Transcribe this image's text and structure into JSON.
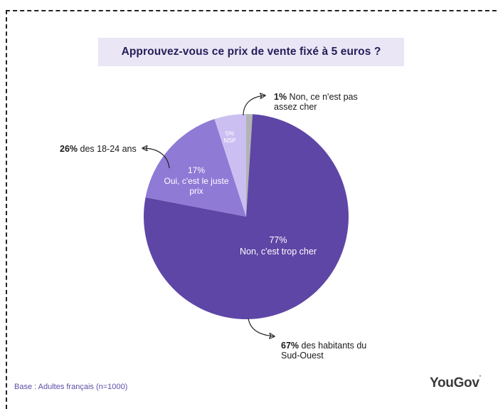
{
  "chart_data": {
    "type": "pie",
    "title": "Approuvez-vous ce prix de vente fixé à 5 euros ?",
    "slices": [
      {
        "label": "Non, ce n'est pas assez cher",
        "value": 1,
        "color": "#b3b3b3"
      },
      {
        "label": "Non, c'est trop cher",
        "value": 77,
        "color": "#5e46a6"
      },
      {
        "label": "Oui, c'est le juste prix",
        "value": 17,
        "color": "#8f7ad6"
      },
      {
        "label": "NSP",
        "value": 5,
        "color": "#cbbff2"
      }
    ],
    "slice_texts": {
      "trop_cher_pct": "77%",
      "trop_cher_label": "Non, c'est trop cher",
      "juste_prix_pct": "17%",
      "juste_prix_line1": "Oui, c'est le juste",
      "juste_prix_line2": "prix",
      "nsp_pct": "5%",
      "nsp_label": "NSP"
    },
    "annotations": {
      "pas_assez": {
        "bold": "1%",
        "line1": " Non, ce n'est pas",
        "line2": "assez cher"
      },
      "jeunes": {
        "bold": "26%",
        "text": " des 18-24 ans"
      },
      "sud_ouest": {
        "bold": "67%",
        "line1": " des habitants du",
        "line2": "Sud-Ouest"
      }
    }
  },
  "footer": {
    "base": "Base : Adultes français (n=1000)",
    "logo": "YouGov"
  }
}
